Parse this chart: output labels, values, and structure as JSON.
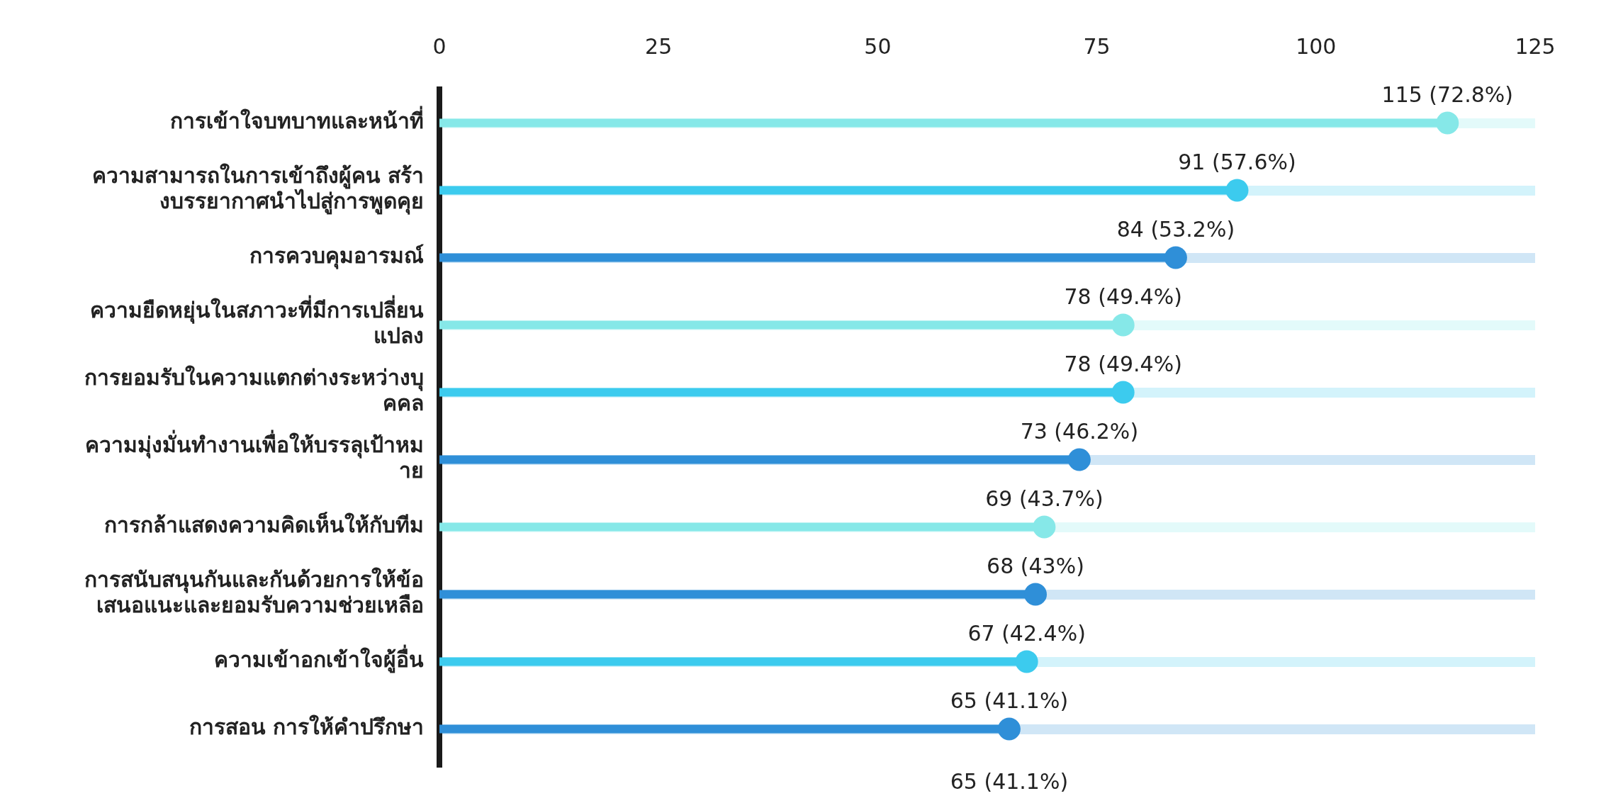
{
  "chart_data": {
    "type": "lollipop",
    "orientation": "horizontal",
    "categories": [
      "การเข้าใจบทบาทและหน้าที่",
      "ความสามารถในการเข้าถึงผู้คน สร้างบรรยากาศนำไปสู่การพูดคุย",
      "การควบคุมอารมณ์",
      "ความยืดหยุ่นในสภาวะที่มีการเปลี่ยนแปลง",
      "การยอมรับในความแตกต่างระหว่างบุคคล",
      "ความมุ่งมั่นทำงานเพื่อให้บรรลุเป้าหมาย",
      "การกล้าแสดงความคิดเห็นให้กับทีม",
      "การสนับสนุนกันและกันด้วยการให้ข้อเสนอแนะและยอมรับความช่วยเหลือ",
      "ความเข้าอกเข้าใจผู้อื่น",
      "การสอน การให้คำปรึกษา"
    ],
    "values": [
      115,
      91,
      84,
      78,
      78,
      73,
      69,
      68,
      67,
      65
    ],
    "value_labels": [
      "115 (72.8%)",
      "91 (57.6%)",
      "84 (53.2%)",
      "78 (49.4%)",
      "78 (49.4%)",
      "73 (46.2%)",
      "69 (43.7%)",
      "68 (43%)",
      "67 (42.4%)",
      "65 (41.1%)"
    ],
    "colors": [
      "#86e8e8",
      "#3ccbee",
      "#2f8fd8",
      "#86e8e8",
      "#3ccbee",
      "#2f8fd8",
      "#86e8e8",
      "#2f8fd8",
      "#3ccbee",
      "#2f8fd8"
    ],
    "xlim": [
      0,
      125
    ],
    "xticks": [
      0,
      25,
      50,
      75,
      100,
      125
    ],
    "grid": "y",
    "legend": false,
    "annotations": [
      "65 (41.1%)"
    ]
  }
}
